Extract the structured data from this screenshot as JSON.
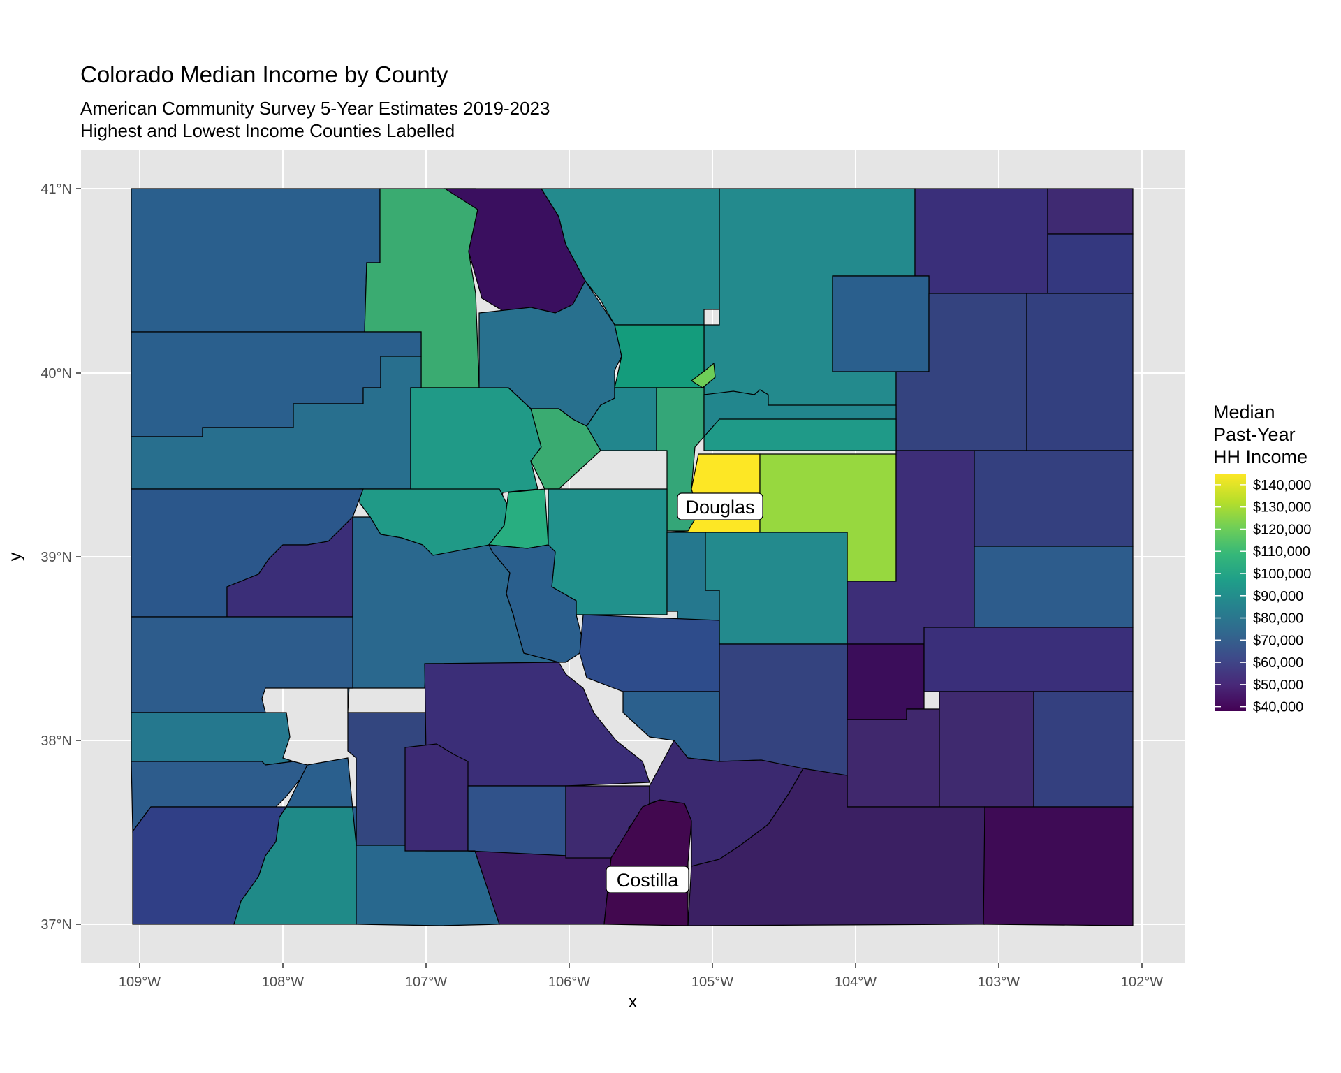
{
  "title": "Colorado Median Income by County",
  "subtitle_line1": "American Community Survey 5-Year Estimates 2019-2023",
  "subtitle_line2": "Highest and Lowest Income Counties Labelled",
  "axes": {
    "x_title": "x",
    "y_title": "y",
    "x_ticks": [
      "109°W",
      "108°W",
      "107°W",
      "106°W",
      "105°W",
      "104°W",
      "103°W",
      "102°W"
    ],
    "y_ticks": [
      "41°N",
      "40°N",
      "39°N",
      "38°N",
      "37°N"
    ]
  },
  "legend": {
    "title_lines": [
      "Median",
      "Past-Year",
      "HH Income"
    ],
    "labels": [
      "$140,000",
      "$130,000",
      "$120,000",
      "$110,000",
      "$100,000",
      "$90,000",
      "$80,000",
      "$70,000",
      "$60,000",
      "$50,000",
      "$40,000"
    ],
    "values": [
      140000,
      130000,
      120000,
      110000,
      100000,
      90000,
      80000,
      70000,
      60000,
      50000,
      40000
    ],
    "scale": "viridis",
    "range": [
      38000,
      145000
    ]
  },
  "colors": {
    "panel_bg": "#e5e5e5",
    "grid": "#ffffff",
    "viridis": [
      "#440154",
      "#482878",
      "#3e4989",
      "#31688e",
      "#26828e",
      "#1f9e89",
      "#35b779",
      "#6ece58",
      "#b5de2b",
      "#fde725"
    ]
  },
  "annotations": [
    {
      "text": "Douglas",
      "lon": -105.0,
      "lat": 39.27
    },
    {
      "text": "Costilla",
      "lon": -105.53,
      "lat": 37.25
    }
  ]
}
